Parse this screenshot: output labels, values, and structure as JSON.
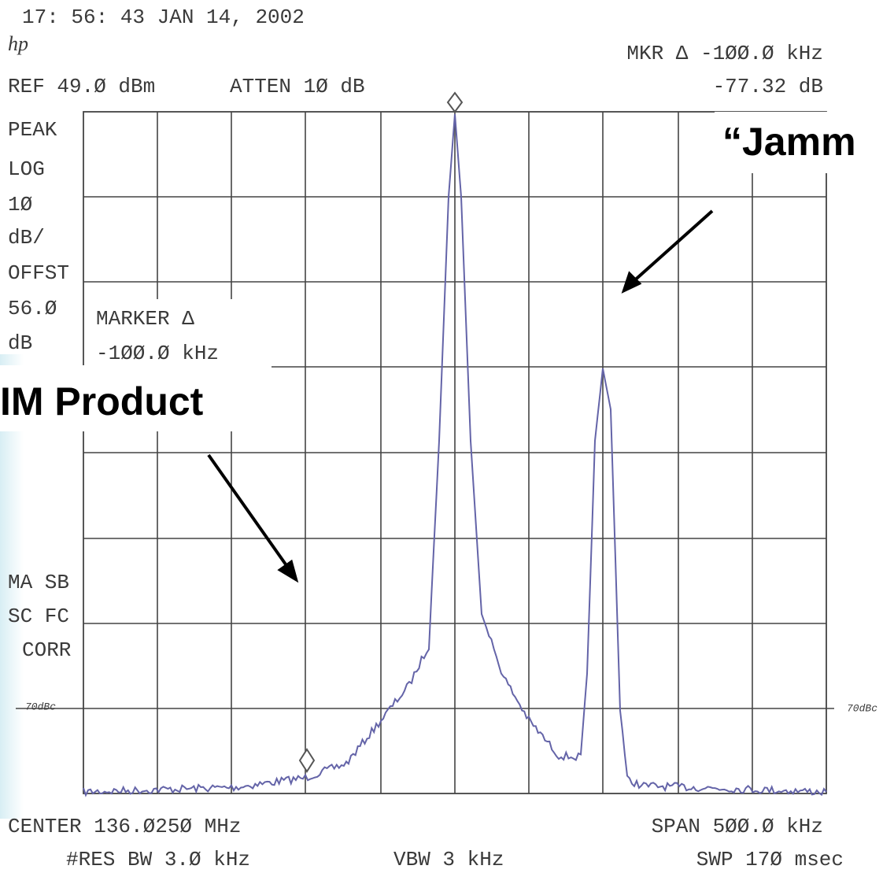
{
  "header": {
    "timestamp": "17: 56: 43 JAN 14, 2002",
    "logo": "hp",
    "marker_readout": "MKR Δ -1ØØ.Ø kHz",
    "ref": "REF 49.Ø dBm",
    "atten": "ATTEN 1Ø dB",
    "marker_level": "-77.32 dB"
  },
  "side_labels": [
    "PEAK",
    "LOG",
    "1Ø",
    "dB/",
    "OFFST",
    "56.Ø",
    "dB"
  ],
  "marker_box": [
    "MARKER Δ",
    "-1ØØ.Ø kHz"
  ],
  "mode_labels": [
    "MA SB",
    "SC FC",
    "CORR"
  ],
  "level_note_left": "70dBc",
  "level_note_right": "70dBc",
  "annotations": {
    "jammer": "“Jamm",
    "im_product": "IM Product"
  },
  "footer": {
    "center": "CENTER 136.Ø25Ø MHz",
    "span": "SPAN 5ØØ.Ø kHz",
    "rbw": "#RES BW 3.Ø kHz",
    "vbw": "VBW 3 kHz",
    "sweep": "SWP 17Ø msec"
  }
}
